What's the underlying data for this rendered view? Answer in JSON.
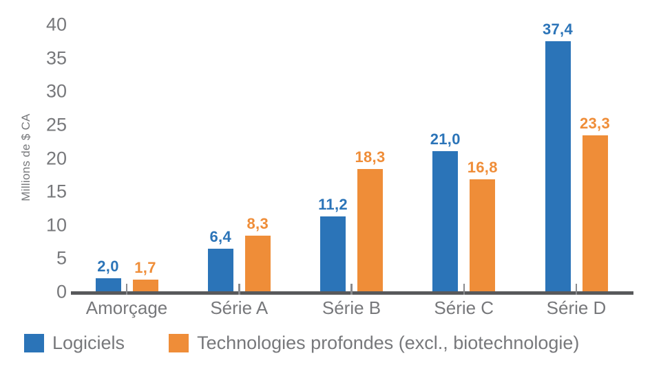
{
  "chart_data": {
    "type": "bar",
    "title": "",
    "xlabel": "",
    "ylabel": "Millions de $ CA",
    "ylim": [
      0,
      40
    ],
    "ytick_step": 5,
    "grid": false,
    "legend_position": "bottom-left",
    "categories": [
      "Amorçage",
      "Série A",
      "Série B",
      "Série C",
      "Série D"
    ],
    "series": [
      {
        "name": "Logiciels",
        "color": "#2B74B8",
        "values": [
          2.0,
          6.4,
          11.2,
          21.0,
          37.4
        ],
        "value_labels": [
          "2,0",
          "6,4",
          "11,2",
          "21,0",
          "37,4"
        ]
      },
      {
        "name": "Technologies profondes (excl., biotechnologie)",
        "color": "#EF8D38",
        "values": [
          1.7,
          8.3,
          18.3,
          16.8,
          23.3
        ],
        "value_labels": [
          "1,7",
          "8,3",
          "18,3",
          "16,8",
          "23,3"
        ]
      }
    ]
  },
  "colors": {
    "axis_line": "#58595B",
    "tick_mark": "#8A8B8E",
    "text_gray": "#77787B",
    "background": "#FFFFFF"
  }
}
